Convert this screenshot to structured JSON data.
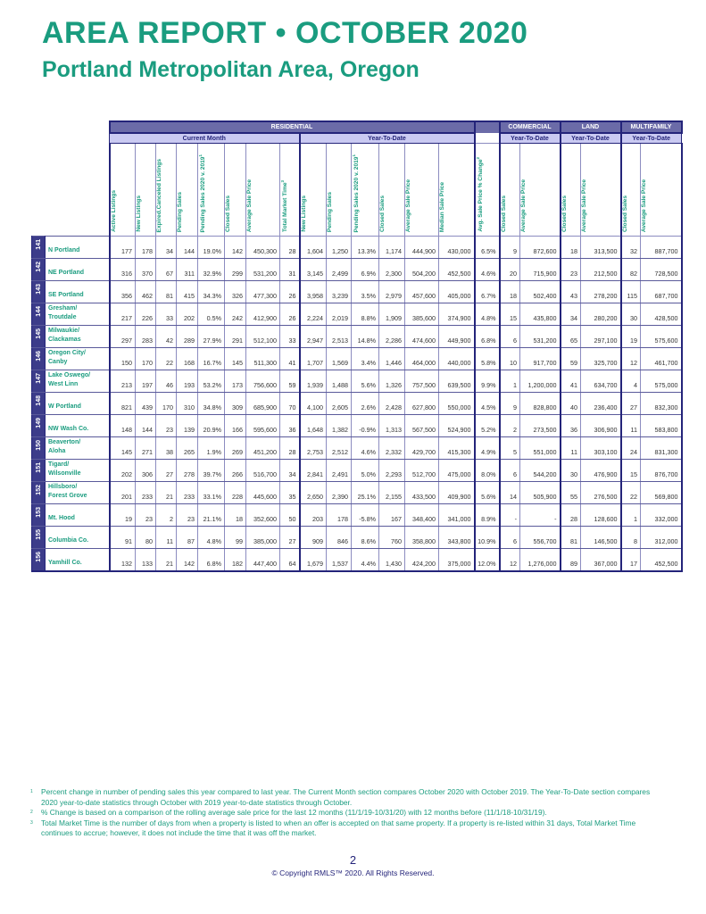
{
  "title": "AREA REPORT • OCTOBER 2020",
  "subtitle": "Portland Metropolitan Area, Oregon",
  "sections": {
    "residential": "RESIDENTIAL",
    "commercial": "COMMERCIAL",
    "land": "LAND",
    "multifamily": "MULTIFAMILY"
  },
  "subsections": {
    "current_month": "Current Month",
    "ytd_res": "Year-To-Date",
    "ytd_com": "Year-To-Date",
    "ytd_land": "Year-To-Date",
    "ytd_mf": "Year-To-Date"
  },
  "columns": [
    {
      "label": "Active Listings",
      "sup": ""
    },
    {
      "label": "New Listings",
      "sup": ""
    },
    {
      "label": "Expired.Canceled Listings",
      "sup": ""
    },
    {
      "label": "Pending Sales",
      "sup": ""
    },
    {
      "label": "Pending Sales 2020 v. 2019",
      "sup": "1"
    },
    {
      "label": "Closed Sales",
      "sup": ""
    },
    {
      "label": "Average Sale Price",
      "sup": ""
    },
    {
      "label": "Total Market Time",
      "sup": "3"
    },
    {
      "label": "New Listings",
      "sup": ""
    },
    {
      "label": "Pending Sales",
      "sup": ""
    },
    {
      "label": "Pending Sales 2020 v. 2019",
      "sup": "1"
    },
    {
      "label": "Closed Sales",
      "sup": ""
    },
    {
      "label": "Average Sale Price",
      "sup": ""
    },
    {
      "label": "Median Sale Price",
      "sup": ""
    },
    {
      "label": "Avg. Sale Price % Change",
      "sup": "2"
    },
    {
      "label": "Closed Sales",
      "sup": ""
    },
    {
      "label": "Average Sale Price",
      "sup": ""
    },
    {
      "label": "Closed Sales",
      "sup": ""
    },
    {
      "label": "Average Sale Price",
      "sup": ""
    },
    {
      "label": "Closed Sales",
      "sup": ""
    },
    {
      "label": "Average Sale Price",
      "sup": ""
    }
  ],
  "rows": [
    {
      "id": "141",
      "name": [
        "N Portland"
      ],
      "v": [
        "177",
        "178",
        "34",
        "144",
        "19.0%",
        "142",
        "450,300",
        "28",
        "1,604",
        "1,250",
        "13.3%",
        "1,174",
        "444,900",
        "430,000",
        "6.5%",
        "9",
        "872,600",
        "18",
        "313,500",
        "32",
        "887,700"
      ]
    },
    {
      "id": "142",
      "name": [
        "NE Portland"
      ],
      "v": [
        "316",
        "370",
        "67",
        "311",
        "32.9%",
        "299",
        "531,200",
        "31",
        "3,145",
        "2,499",
        "6.9%",
        "2,300",
        "504,200",
        "452,500",
        "4.6%",
        "20",
        "715,900",
        "23",
        "212,500",
        "82",
        "728,500"
      ]
    },
    {
      "id": "143",
      "name": [
        "SE Portland"
      ],
      "v": [
        "356",
        "462",
        "81",
        "415",
        "34.3%",
        "326",
        "477,300",
        "26",
        "3,958",
        "3,239",
        "3.5%",
        "2,979",
        "457,600",
        "405,000",
        "6.7%",
        "18",
        "502,400",
        "43",
        "278,200",
        "115",
        "687,700"
      ]
    },
    {
      "id": "144",
      "name": [
        "Gresham/",
        "Troutdale"
      ],
      "v": [
        "217",
        "226",
        "33",
        "202",
        "0.5%",
        "242",
        "412,900",
        "26",
        "2,224",
        "2,019",
        "8.8%",
        "1,909",
        "385,600",
        "374,900",
        "4.8%",
        "15",
        "435,800",
        "34",
        "280,200",
        "30",
        "428,500"
      ]
    },
    {
      "id": "145",
      "name": [
        "Milwaukie/",
        "Clackamas"
      ],
      "v": [
        "297",
        "283",
        "42",
        "289",
        "27.9%",
        "291",
        "512,100",
        "33",
        "2,947",
        "2,513",
        "14.8%",
        "2,286",
        "474,600",
        "449,900",
        "6.8%",
        "6",
        "531,200",
        "65",
        "297,100",
        "19",
        "575,600"
      ]
    },
    {
      "id": "146",
      "name": [
        "Oregon City/",
        "Canby"
      ],
      "v": [
        "150",
        "170",
        "22",
        "168",
        "16.7%",
        "145",
        "511,300",
        "41",
        "1,707",
        "1,569",
        "3.4%",
        "1,446",
        "464,000",
        "440,000",
        "5.8%",
        "10",
        "917,700",
        "59",
        "325,700",
        "12",
        "461,700"
      ]
    },
    {
      "id": "147",
      "name": [
        "Lake Oswego/",
        "West Linn"
      ],
      "v": [
        "213",
        "197",
        "46",
        "193",
        "53.2%",
        "173",
        "756,600",
        "59",
        "1,939",
        "1,488",
        "5.6%",
        "1,326",
        "757,500",
        "639,500",
        "9.9%",
        "1",
        "1,200,000",
        "41",
        "634,700",
        "4",
        "575,000"
      ]
    },
    {
      "id": "148",
      "name": [
        "W Portland"
      ],
      "v": [
        "821",
        "439",
        "170",
        "310",
        "34.8%",
        "309",
        "685,900",
        "70",
        "4,100",
        "2,605",
        "2.6%",
        "2,428",
        "627,800",
        "550,000",
        "4.5%",
        "9",
        "828,800",
        "40",
        "236,400",
        "27",
        "832,300"
      ]
    },
    {
      "id": "149",
      "name": [
        "NW Wash Co."
      ],
      "v": [
        "148",
        "144",
        "23",
        "139",
        "20.9%",
        "166",
        "595,600",
        "36",
        "1,648",
        "1,382",
        "-0.9%",
        "1,313",
        "567,500",
        "524,900",
        "5.2%",
        "2",
        "273,500",
        "36",
        "306,900",
        "11",
        "583,800"
      ]
    },
    {
      "id": "150",
      "name": [
        "Beaverton/",
        "Aloha"
      ],
      "v": [
        "145",
        "271",
        "38",
        "265",
        "1.9%",
        "269",
        "451,200",
        "28",
        "2,753",
        "2,512",
        "4.6%",
        "2,332",
        "429,700",
        "415,300",
        "4.9%",
        "5",
        "551,000",
        "11",
        "303,100",
        "24",
        "831,300"
      ]
    },
    {
      "id": "151",
      "name": [
        "Tigard/",
        "Wilsonville"
      ],
      "v": [
        "202",
        "306",
        "27",
        "278",
        "39.7%",
        "266",
        "516,700",
        "34",
        "2,841",
        "2,491",
        "5.0%",
        "2,293",
        "512,700",
        "475,000",
        "8.0%",
        "6",
        "544,200",
        "30",
        "476,900",
        "15",
        "876,700"
      ]
    },
    {
      "id": "152",
      "name": [
        "Hillsboro/",
        "Forest Grove"
      ],
      "v": [
        "201",
        "233",
        "21",
        "233",
        "33.1%",
        "228",
        "445,600",
        "35",
        "2,650",
        "2,390",
        "25.1%",
        "2,155",
        "433,500",
        "409,900",
        "5.6%",
        "14",
        "505,900",
        "55",
        "276,500",
        "22",
        "569,800"
      ]
    },
    {
      "id": "153",
      "name": [
        "Mt. Hood"
      ],
      "v": [
        "19",
        "23",
        "2",
        "23",
        "21.1%",
        "18",
        "352,600",
        "50",
        "203",
        "178",
        "-5.8%",
        "167",
        "348,400",
        "341,000",
        "8.9%",
        "-",
        "-",
        "28",
        "128,600",
        "1",
        "332,000"
      ]
    },
    {
      "id": "155",
      "name": [
        "Columbia Co."
      ],
      "v": [
        "91",
        "80",
        "11",
        "87",
        "4.8%",
        "99",
        "385,000",
        "27",
        "909",
        "846",
        "8.6%",
        "760",
        "358,800",
        "343,800",
        "10.9%",
        "6",
        "556,700",
        "81",
        "146,500",
        "8",
        "312,000"
      ]
    },
    {
      "id": "156",
      "name": [
        "Yamhill Co."
      ],
      "v": [
        "132",
        "133",
        "21",
        "142",
        "6.8%",
        "182",
        "447,400",
        "64",
        "1,679",
        "1,537",
        "4.4%",
        "1,430",
        "424,200",
        "375,000",
        "12.0%",
        "12",
        "1,276,000",
        "89",
        "367,000",
        "17",
        "452,500"
      ]
    }
  ],
  "footnotes": [
    {
      "mark": "1",
      "text": "Percent change in number of pending sales this year compared to last year. The Current Month section compares October 2020 with October 2019. The Year-To-Date section compares 2020 year-to-date statistics through October with 2019 year-to-date statistics through October."
    },
    {
      "mark": "2",
      "text": "% Change is based on a comparison of the rolling average sale price for the last 12 months (11/1/19-10/31/20) with 12 months before (11/1/18-10/31/19)."
    },
    {
      "mark": "3",
      "text": "Total Market Time is the number of days from when a property is listed to when an offer is accepted on that same property. If a property is re-listed within 31 days, Total Market Time continues to accrue; however, it does not include the time that it was off the market."
    }
  ],
  "page_number": "2",
  "copyright": "© Copyright RMLS™ 2020. All Rights Reserved."
}
